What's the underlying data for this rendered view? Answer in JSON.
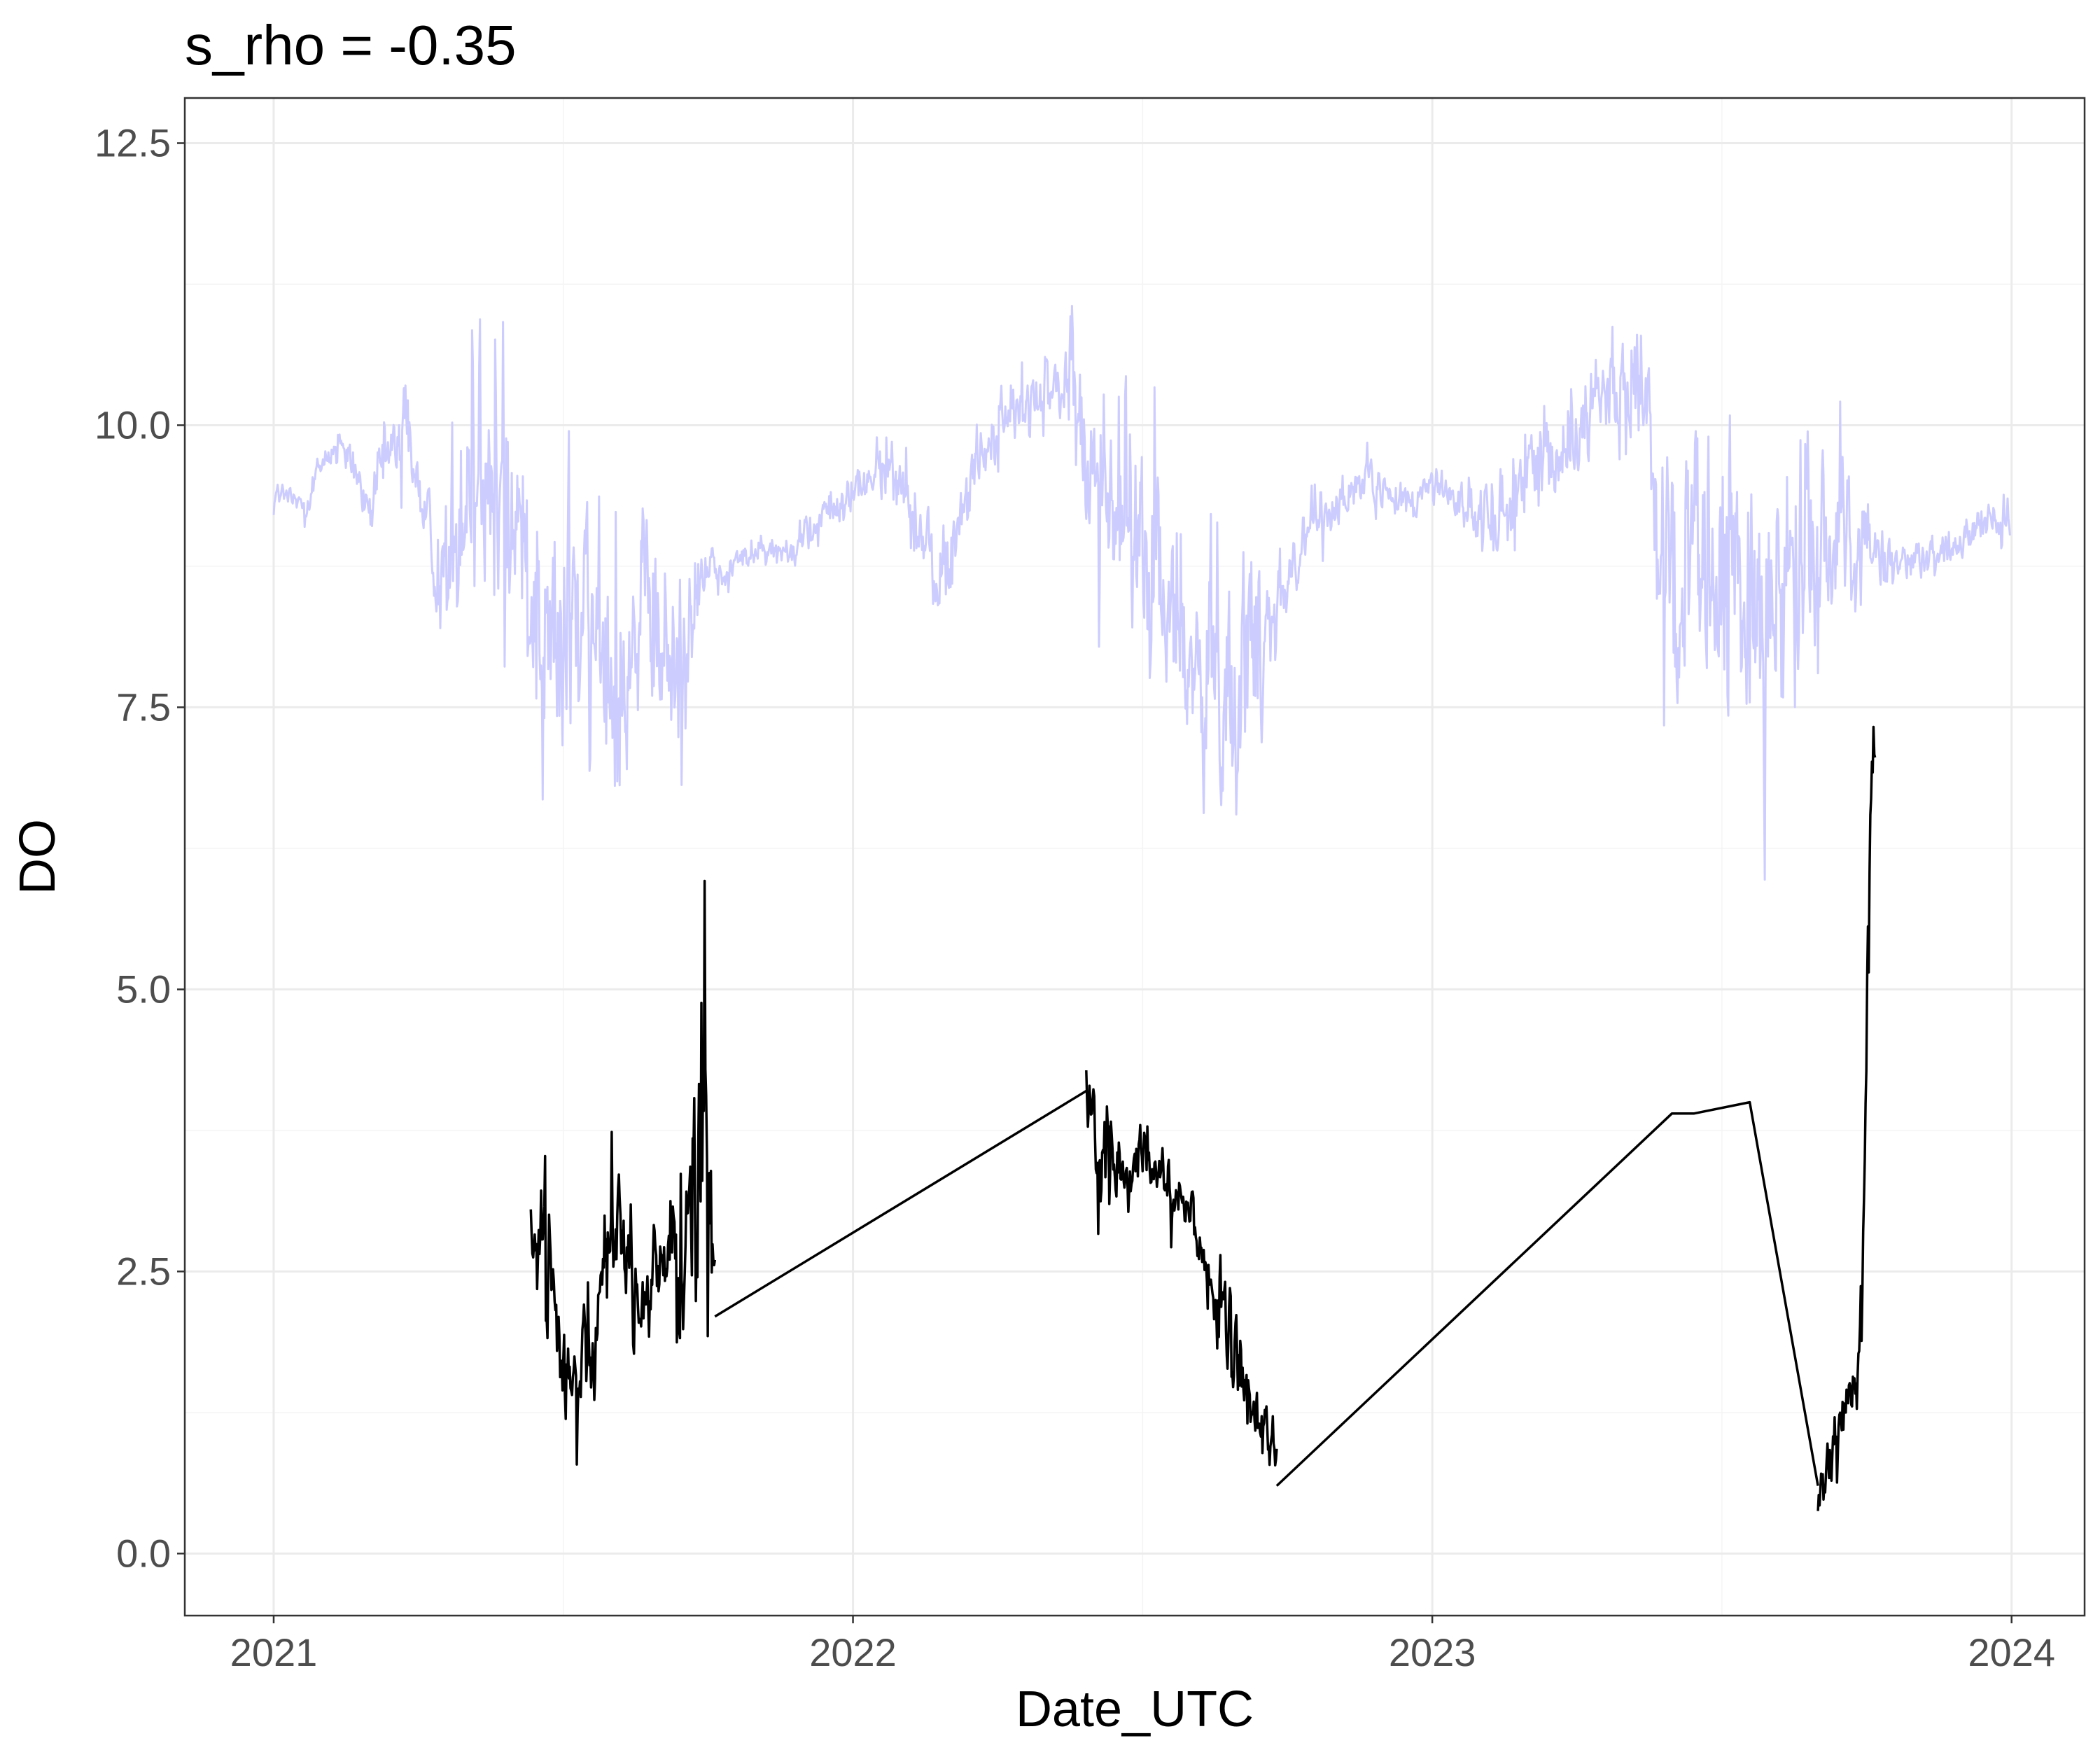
{
  "chart_data": {
    "type": "line",
    "title": "s_rho = -0.35",
    "xlabel": "Date_UTC",
    "ylabel": "DO",
    "xlim": [
      "2020-11-06",
      "2024-02-16"
    ],
    "ylim": [
      -0.55,
      12.9
    ],
    "x_ticks": [
      "2021",
      "2022",
      "2023",
      "2024"
    ],
    "x_tick_dates": [
      "2021-01-01",
      "2022-01-01",
      "2023-01-01",
      "2024-01-01"
    ],
    "y_ticks": [
      0.0,
      2.5,
      5.0,
      7.5,
      10.0,
      12.5
    ],
    "y_tick_labels": [
      "0.0",
      "2.5",
      "5.0",
      "7.5",
      "10.0",
      "12.5"
    ],
    "grid": true,
    "legend": "none",
    "series": [
      {
        "color": "#ccccff",
        "style": "noisy",
        "x": [
          "2021-01-01",
          "2021-01-20",
          "2021-02-05",
          "2021-02-20",
          "2021-03-01",
          "2021-03-10",
          "2021-03-25",
          "2021-04-10",
          "2021-04-20",
          "2021-05-01",
          "2021-05-10",
          "2021-05-20",
          "2021-06-01",
          "2021-06-10",
          "2021-06-20",
          "2021-07-01",
          "2021-07-10",
          "2021-07-20",
          "2021-08-01",
          "2021-08-10",
          "2021-08-20",
          "2021-09-01",
          "2021-09-10",
          "2021-09-20",
          "2021-10-01",
          "2021-10-10",
          "2021-11-01",
          "2021-11-20",
          "2021-12-01",
          "2021-12-15",
          "2022-01-01",
          "2022-01-15",
          "2022-02-01",
          "2022-02-15",
          "2022-03-01",
          "2022-03-15",
          "2022-04-01",
          "2022-04-15",
          "2022-05-01",
          "2022-05-15",
          "2022-06-01",
          "2022-06-15",
          "2022-07-01",
          "2022-07-15",
          "2022-08-01",
          "2022-08-15",
          "2022-09-01",
          "2022-09-15",
          "2022-10-01",
          "2022-10-15",
          "2022-11-01",
          "2022-11-15",
          "2022-12-01",
          "2022-12-15",
          "2023-01-01",
          "2023-01-15",
          "2023-02-01",
          "2023-02-15",
          "2023-03-01",
          "2023-03-15",
          "2023-04-01",
          "2023-04-15",
          "2023-05-01",
          "2023-05-15",
          "2023-06-01",
          "2023-06-15",
          "2023-07-01",
          "2023-07-15",
          "2023-08-01",
          "2023-08-15",
          "2023-09-01",
          "2023-09-15",
          "2023-10-01",
          "2023-10-15",
          "2023-11-01",
          "2023-11-15",
          "2023-12-01",
          "2023-12-15",
          "2023-12-31"
        ],
        "values": [
          9.4,
          9.3,
          9.8,
          9.6,
          9.2,
          9.6,
          10.1,
          8.9,
          8.6,
          9.6,
          9.9,
          9.3,
          9.2,
          8.9,
          8.4,
          8.0,
          8.2,
          8.0,
          7.9,
          8.1,
          8.2,
          8.0,
          7.9,
          8.3,
          8.8,
          8.7,
          8.9,
          8.9,
          9.0,
          9.2,
          9.4,
          9.6,
          9.5,
          8.8,
          8.7,
          9.6,
          9.9,
          10.1,
          10.2,
          10.4,
          9.7,
          9.3,
          8.8,
          8.5,
          8.0,
          7.6,
          7.8,
          8.3,
          8.6,
          9.1,
          9.3,
          9.5,
          9.4,
          9.3,
          9.5,
          9.4,
          9.1,
          9.3,
          9.6,
          9.7,
          9.9,
          10.3,
          10.2,
          10.4,
          8.6,
          8.3,
          8.7,
          8.6,
          8.4,
          8.5,
          8.7,
          9.1,
          8.9,
          8.7,
          8.8,
          8.9,
          9.0,
          9.1,
          9.1
        ],
        "amplitudes": [
          0.2,
          0.2,
          0.3,
          0.3,
          0.3,
          0.6,
          0.5,
          0.5,
          1.2,
          1.5,
          1.8,
          1.7,
          1.9,
          2.0,
          2.0,
          1.8,
          1.9,
          1.8,
          1.6,
          1.7,
          1.5,
          1.3,
          1.4,
          1.1,
          0.3,
          0.2,
          0.2,
          0.2,
          0.3,
          0.3,
          0.3,
          0.4,
          0.4,
          0.6,
          0.7,
          0.5,
          0.4,
          0.5,
          0.5,
          0.6,
          1.2,
          1.5,
          1.7,
          1.9,
          1.8,
          1.7,
          1.5,
          1.4,
          0.5,
          0.4,
          0.3,
          0.3,
          0.3,
          0.3,
          0.2,
          0.3,
          0.5,
          0.6,
          0.7,
          0.7,
          0.5,
          0.6,
          0.8,
          0.9,
          1.8,
          2.0,
          2.2,
          2.0,
          2.1,
          1.9,
          1.6,
          1.2,
          0.5,
          0.4,
          0.3,
          0.3,
          0.3,
          0.3,
          0.3
        ]
      },
      {
        "color": "#000000",
        "style": "noisy",
        "x": [
          "2021-06-12",
          "2021-06-20",
          "2021-06-28",
          "2021-07-06",
          "2021-07-14",
          "2021-07-22",
          "2021-07-30",
          "2021-08-07",
          "2021-08-15",
          "2021-08-23",
          "2021-08-31",
          "2021-09-08",
          "2021-09-16",
          "2021-09-24",
          "2021-10-01",
          "2021-10-06"
        ],
        "values": [
          2.8,
          2.6,
          2.0,
          1.4,
          2.2,
          2.0,
          2.7,
          3.0,
          2.3,
          2.0,
          2.4,
          2.6,
          2.7,
          3.0,
          4.5,
          2.2
        ],
        "amplitudes": [
          0.6,
          0.8,
          0.6,
          0.7,
          0.9,
          0.6,
          0.8,
          0.9,
          0.7,
          0.7,
          0.8,
          0.9,
          1.5,
          2.0,
          2.6,
          0.9
        ]
      },
      {
        "color": "#000000",
        "style": "plain",
        "x": [
          "2021-10-06",
          "2022-05-28"
        ],
        "values": [
          2.1,
          4.1
        ]
      },
      {
        "color": "#000000",
        "style": "noisy",
        "x": [
          "2022-05-28",
          "2022-06-05",
          "2022-06-13",
          "2022-06-21",
          "2022-06-29",
          "2022-07-07",
          "2022-07-15",
          "2022-07-23",
          "2022-07-31",
          "2022-08-08",
          "2022-08-16",
          "2022-08-24",
          "2022-09-01",
          "2022-09-09",
          "2022-09-17",
          "2022-09-25"
        ],
        "values": [
          4.0,
          3.5,
          3.6,
          3.2,
          3.4,
          3.5,
          3.3,
          3.2,
          3.1,
          2.7,
          2.3,
          1.8,
          1.6,
          1.3,
          1.2,
          0.9
        ],
        "amplitudes": [
          0.5,
          0.6,
          0.8,
          0.5,
          0.4,
          0.5,
          0.4,
          0.4,
          0.4,
          0.4,
          0.6,
          0.7,
          0.5,
          0.5,
          0.4,
          0.4
        ]
      },
      {
        "color": "#000000",
        "style": "plain",
        "x": [
          "2022-09-25",
          "2023-06-01",
          "2023-06-15",
          "2023-07-20",
          "2023-09-01"
        ],
        "values": [
          0.6,
          3.9,
          3.9,
          4.0,
          0.6
        ]
      },
      {
        "color": "#000000",
        "style": "noisy",
        "x": [
          "2023-09-01",
          "2023-09-05",
          "2023-09-09",
          "2023-09-13",
          "2023-09-17",
          "2023-09-21",
          "2023-09-25",
          "2023-09-29",
          "2023-10-01",
          "2023-10-03",
          "2023-10-05",
          "2023-10-07"
        ],
        "values": [
          0.5,
          0.6,
          0.8,
          1.0,
          1.2,
          1.5,
          1.5,
          2.4,
          4.0,
          6.5,
          7.4,
          7.0
        ],
        "amplitudes": [
          0.3,
          0.4,
          0.4,
          0.5,
          0.5,
          0.5,
          0.5,
          0.6,
          0.7,
          0.8,
          0.5,
          0.5
        ]
      }
    ]
  }
}
